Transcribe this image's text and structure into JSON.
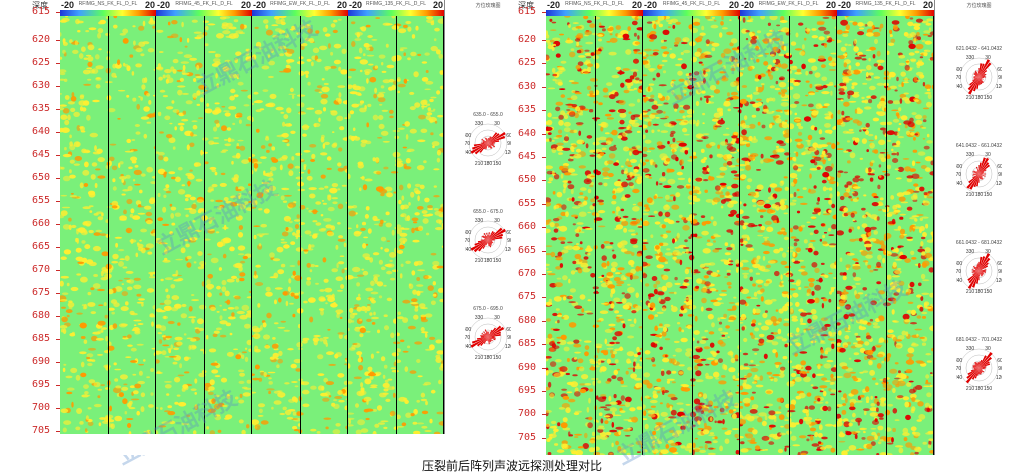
{
  "left": {
    "depth_header": "深度",
    "top_tick": "615",
    "depth_ticks": [
      "620",
      "625",
      "630",
      "635",
      "640",
      "645",
      "650",
      "655",
      "660",
      "665",
      "670",
      "675",
      "680",
      "685",
      "690",
      "695",
      "700",
      "705"
    ],
    "tracks": [
      {
        "min": "-20",
        "max": "20",
        "title": "RFIMG_NS_FK_FL_D_FL"
      },
      {
        "min": "-20",
        "max": "20",
        "title": "RFIMG_45_FK_FL_D_FL"
      },
      {
        "min": "-20",
        "max": "20",
        "title": "RFIMG_EW_FK_FL_D_FL"
      },
      {
        "min": "-20",
        "max": "20",
        "title": "RFIMG_135_FK_FL_D_FL"
      }
    ],
    "rose_header": "方位玫瑰图",
    "roses": [
      {
        "label": "635.0 - 655.0",
        "angles": [
          "330",
          "30",
          "300",
          "60",
          "270",
          "90",
          "240",
          "120",
          "210",
          "150",
          "180"
        ]
      },
      {
        "label": "655.0 - 675.0",
        "angles": [
          "330",
          "30",
          "300",
          "60",
          "270",
          "90",
          "240",
          "120",
          "210",
          "150",
          "180"
        ]
      },
      {
        "label": "675.0 - 695.0",
        "angles": [
          "330",
          "30",
          "300",
          "60",
          "270",
          "90",
          "240",
          "120",
          "210",
          "150",
          "180"
        ]
      }
    ]
  },
  "right": {
    "depth_header": "深度",
    "top_tick": "615",
    "depth_ticks": [
      "620",
      "625",
      "630",
      "635",
      "640",
      "645",
      "650",
      "655",
      "660",
      "665",
      "670",
      "675",
      "680",
      "685",
      "690",
      "695",
      "700",
      "705"
    ],
    "tracks": [
      {
        "min": "-20",
        "max": "20",
        "title": "RFIMG_NS_FK_FL_D_FL"
      },
      {
        "min": "-20",
        "max": "20",
        "title": "RFIMG_45_FK_FL_D_FL"
      },
      {
        "min": "-20",
        "max": "20",
        "title": "RFIMG_EW_FK_FL_D_FL"
      },
      {
        "min": "-20",
        "max": "20",
        "title": "RFIMG_135_FK_FL_D_FL"
      }
    ],
    "rose_header": "方位玫瑰图",
    "roses": [
      {
        "label": "621.0432 - 641.0432",
        "angles": [
          "330",
          "30",
          "300",
          "60",
          "270",
          "90",
          "240",
          "120",
          "210",
          "150",
          "180"
        ]
      },
      {
        "label": "641.0432 - 661.0432",
        "angles": [
          "330",
          "30",
          "300",
          "60",
          "270",
          "90",
          "240",
          "120",
          "210",
          "150",
          "180"
        ]
      },
      {
        "label": "661.0432 - 681.0432",
        "angles": [
          "330",
          "30",
          "300",
          "60",
          "270",
          "90",
          "240",
          "120",
          "210",
          "150",
          "180"
        ]
      },
      {
        "label": "681.0432 - 701.0432",
        "angles": [
          "330",
          "30",
          "300",
          "60",
          "270",
          "90",
          "240",
          "120",
          "210",
          "150",
          "180"
        ]
      }
    ]
  },
  "watermarks": [
    "立鼎石油科技",
    "立鼎石油科技",
    "立鼎石油科技",
    "立鼎石油科技",
    "立鼎石油科技",
    "立鼎石油科技"
  ],
  "caption": "压裂前后阵列声波远探测处理对比",
  "colors": {
    "background_green": "#7af07a",
    "anomaly_yellow": "#ffee30",
    "anomaly_orange": "#ff9a00",
    "anomaly_red": "#e00000",
    "rose_red": "#e00000",
    "tick_red": "#cc2a2a"
  }
}
